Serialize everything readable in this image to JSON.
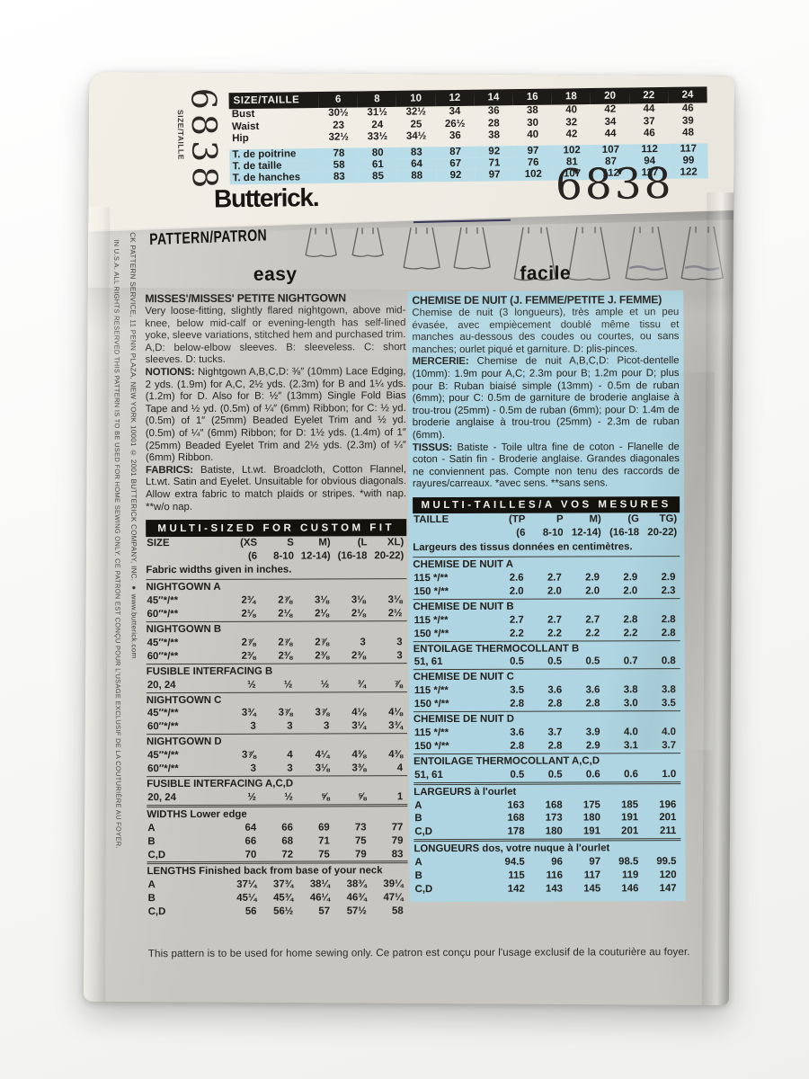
{
  "colors": {
    "chart_blue": "#b8dde8",
    "column_blue": "#aed5e1",
    "ink": "#1f1d19",
    "band_white": "#efece4",
    "envelope_gray": "#c7c6c1"
  },
  "envelope": {
    "brand": "Butterick.",
    "pattern_number": "6838",
    "size_vertical_label": "SIZE/TAILLE",
    "pattern_label": "PATTERN/PATRON",
    "footer": "This pattern is to be used for home sewing only. Ce patron est conçu pour l'usage exclusif de la couturière au foyer.",
    "side_text_inner": "CK PATTERN SERVICE, 11 PENN PLAZA, NEW YORK 10001 © 2001 BUTTERICK COMPANY, INC. ● www.butterick.com",
    "side_text_outer": "IN U.S.A. ALL RIGHTS RESERVED THIS PATTERN IS TO BE USED FOR HOME SEWING ONLY. CE PATRON EST CONÇU POUR L'USAGE EXCLUSIF DE LA COUTURIÈRE AU FOYER."
  },
  "size_chart": {
    "header": "SIZE/TAILLE",
    "sizes": [
      "6",
      "8",
      "10",
      "12",
      "14",
      "16",
      "18",
      "20",
      "22",
      "24"
    ],
    "rows_en": [
      {
        "label": "Bust",
        "values": [
          "30½",
          "31½",
          "32½",
          "34",
          "36",
          "38",
          "40",
          "42",
          "44",
          "46"
        ]
      },
      {
        "label": "Waist",
        "values": [
          "23",
          "24",
          "25",
          "26½",
          "28",
          "30",
          "32",
          "34",
          "37",
          "39"
        ]
      },
      {
        "label": "Hip",
        "values": [
          "32½",
          "33½",
          "34½",
          "36",
          "38",
          "40",
          "42",
          "44",
          "46",
          "48"
        ]
      }
    ],
    "rows_fr": [
      {
        "label": "T. de poitrine",
        "values": [
          "78",
          "80",
          "83",
          "87",
          "92",
          "97",
          "102",
          "107",
          "112",
          "117"
        ]
      },
      {
        "label": "T. de taille",
        "values": [
          "58",
          "61",
          "64",
          "67",
          "71",
          "76",
          "81",
          "87",
          "94",
          "99"
        ]
      },
      {
        "label": "T. de hanches",
        "values": [
          "83",
          "85",
          "88",
          "92",
          "97",
          "102",
          "107",
          "112",
          "117",
          "122"
        ]
      }
    ]
  },
  "english": {
    "difficulty": "easy",
    "title": "MISSES'/MISSES' PETITE NIGHTGOWN",
    "desc": "Very loose-fitting, slightly flared nightgown, above mid-knee, below mid-calf or evening-length has self-lined yoke, sleeve variations, stitched hem and purchased trim. A,D: below-elbow sleeves. B: sleeveless. C: short sleeves. D: tucks.",
    "notions_lead": "NOTIONS:",
    "notions": " Nightgown A,B,C,D: ⅜″ (10mm) Lace Edging, 2 yds. (1.9m) for A,C, 2½ yds. (2.3m) for B and 1¼ yds. (1.2m) for D. Also for B: ½″ (13mm) Single Fold Bias Tape and ½ yd. (0.5m) of ¼″ (6mm) Ribbon; for C: ½ yd. (0.5m) of 1″ (25mm) Beaded Eyelet Trim and ½ yd. (0.5m) of ¼″ (6mm) Ribbon; for D: 1½ yds. (1.4m) of 1″ (25mm) Beaded Eyelet Trim and 2½ yds. (2.3m) of ¼″ (6mm) Ribbon.",
    "fabrics_lead": "FABRICS:",
    "fabrics": " Batiste, Lt.wt. Broadcloth, Cotton Flannel, Lt.wt. Satin and Eyelet. Unsuitable for obvious diagonals. Allow extra fabric to match plaids or stripes. *with nap. **w/o nap.",
    "table": {
      "header": "MULTI-SIZED FOR CUSTOM FIT",
      "size_rows": [
        [
          "SIZE",
          "(XS",
          "S",
          "M)",
          "(L",
          "XL)"
        ],
        [
          "",
          "(6",
          "8-10",
          "12-14)",
          "(16-18",
          "20-22)"
        ]
      ],
      "note": "Fabric widths given in inches.",
      "sections": [
        {
          "title": "NIGHTGOWN A",
          "rows": [
            {
              "label": "45″*/**",
              "values": [
                "2¾",
                "2⅞",
                "3⅛",
                "3⅛",
                "3⅛"
              ]
            },
            {
              "label": "60″*/**",
              "values": [
                "2⅛",
                "2⅛",
                "2⅛",
                "2⅛",
                "2½"
              ]
            }
          ]
        },
        {
          "title": "NIGHTGOWN B",
          "rows": [
            {
              "label": "45″*/**",
              "values": [
                "2⅞",
                "2⅞",
                "2⅞",
                "3",
                "3"
              ]
            },
            {
              "label": "60″*/**",
              "values": [
                "2⅜",
                "2⅜",
                "2⅜",
                "2⅜",
                "3"
              ]
            }
          ]
        },
        {
          "title": "FUSIBLE INTERFACING B",
          "rows": [
            {
              "label": "20, 24",
              "values": [
                "½",
                "½",
                "½",
                "¾",
                "⅞"
              ]
            }
          ]
        },
        {
          "title": "NIGHTGOWN C",
          "rows": [
            {
              "label": "45″*/**",
              "values": [
                "3¾",
                "3⅞",
                "3⅞",
                "4⅛",
                "4⅛"
              ]
            },
            {
              "label": "60″*/**",
              "values": [
                "3",
                "3",
                "3",
                "3¼",
                "3¾"
              ]
            }
          ]
        },
        {
          "title": "NIGHTGOWN D",
          "rows": [
            {
              "label": "45″*/**",
              "values": [
                "3⅞",
                "4",
                "4¼",
                "4⅜",
                "4⅜"
              ]
            },
            {
              "label": "60″*/**",
              "values": [
                "3",
                "3",
                "3⅛",
                "3⅜",
                "4"
              ]
            }
          ]
        },
        {
          "title": "FUSIBLE INTERFACING A,C,D",
          "rows": [
            {
              "label": "20, 24",
              "values": [
                "½",
                "½",
                "⅝",
                "⅝",
                "1"
              ]
            }
          ]
        },
        {
          "title": "WIDTHS Lower edge",
          "strong_rule": true,
          "rows": [
            {
              "label": "A",
              "values": [
                "64",
                "66",
                "69",
                "73",
                "77"
              ]
            },
            {
              "label": "B",
              "values": [
                "66",
                "68",
                "71",
                "75",
                "79"
              ]
            },
            {
              "label": "C,D",
              "values": [
                "70",
                "72",
                "75",
                "79",
                "83"
              ]
            }
          ]
        },
        {
          "title": "LENGTHS Finished back from base of your neck",
          "strong_rule": true,
          "rows": [
            {
              "label": "A",
              "values": [
                "37¼",
                "37¾",
                "38¼",
                "38¾",
                "39¼"
              ]
            },
            {
              "label": "B",
              "values": [
                "45¼",
                "45¾",
                "46¼",
                "46¾",
                "47¼"
              ]
            },
            {
              "label": "C,D",
              "values": [
                "56",
                "56½",
                "57",
                "57½",
                "58"
              ]
            }
          ]
        }
      ]
    }
  },
  "french": {
    "difficulty": "facile",
    "title": "CHEMISE DE NUIT (J. FEMME/PETITE J. FEMME)",
    "desc": "Chemise de nuit (3 longueurs), très ample et un peu évasée, avec empiècement doublé même tissu et manches au-dessous des coudes ou courtes, ou sans manches; ourlet piqué et garniture. D: plis-pinces.",
    "mercerie_lead": "MERCERIE:",
    "mercerie": " Chemise de nuit A,B,C,D: Picot-dentelle (10mm): 1.9m pour A,C; 2.3m pour B; 1.2m pour D; plus pour B: Ruban biaisé simple (13mm) - 0.5m de ruban (6mm); pour C: 0.5m de garniture de broderie anglaise à trou-trou (25mm) - 0.5m de ruban (6mm); pour D: 1.4m de broderie anglaise à trou-trou (25mm) - 2.3m de ruban (6mm).",
    "tissus_lead": "TISSUS:",
    "tissus": " Batiste - Toile ultra fine de coton - Flanelle de coton - Satin fin - Broderie anglaise. Grandes diagonales ne conviennent pas. Compte non tenu des raccords de rayures/carreaux. *avec sens. **sans sens.",
    "table": {
      "header": "MULTI-TAILLES/A VOS MESURES",
      "size_rows": [
        [
          "TAILLE",
          "(TP",
          "P",
          "M)",
          "(G",
          "TG)"
        ],
        [
          "",
          "(6",
          "8-10",
          "12-14)",
          "(16-18",
          "20-22)"
        ]
      ],
      "note": "Largeurs des tissus données en centimètres.",
      "sections": [
        {
          "title": "CHEMISE DE NUIT A",
          "rows": [
            {
              "label": "115 */**",
              "values": [
                "2.6",
                "2.7",
                "2.9",
                "2.9",
                "2.9"
              ]
            },
            {
              "label": "150 */**",
              "values": [
                "2.0",
                "2.0",
                "2.0",
                "2.0",
                "2.3"
              ]
            }
          ]
        },
        {
          "title": "CHEMISE DE NUIT B",
          "rows": [
            {
              "label": "115 */**",
              "values": [
                "2.7",
                "2.7",
                "2.7",
                "2.8",
                "2.8"
              ]
            },
            {
              "label": "150 */**",
              "values": [
                "2.2",
                "2.2",
                "2.2",
                "2.2",
                "2.8"
              ]
            }
          ]
        },
        {
          "title": "ENTOILAGE THERMOCOLLANT B",
          "rows": [
            {
              "label": "51, 61",
              "values": [
                "0.5",
                "0.5",
                "0.5",
                "0.7",
                "0.8"
              ]
            }
          ]
        },
        {
          "title": "CHEMISE DE NUIT C",
          "rows": [
            {
              "label": "115 */**",
              "values": [
                "3.5",
                "3.6",
                "3.6",
                "3.8",
                "3.8"
              ]
            },
            {
              "label": "150 */**",
              "values": [
                "2.8",
                "2.8",
                "2.8",
                "3.0",
                "3.5"
              ]
            }
          ]
        },
        {
          "title": "CHEMISE DE NUIT D",
          "rows": [
            {
              "label": "115 */**",
              "values": [
                "3.6",
                "3.7",
                "3.9",
                "4.0",
                "4.0"
              ]
            },
            {
              "label": "150 */**",
              "values": [
                "2.8",
                "2.8",
                "2.9",
                "3.1",
                "3.7"
              ]
            }
          ]
        },
        {
          "title": "ENTOILAGE THERMOCOLLANT A,C,D",
          "rows": [
            {
              "label": "51, 61",
              "values": [
                "0.5",
                "0.5",
                "0.6",
                "0.6",
                "1.0"
              ]
            }
          ]
        },
        {
          "title": "LARGEURS à l'ourlet",
          "strong_rule": true,
          "rows": [
            {
              "label": "A",
              "values": [
                "163",
                "168",
                "175",
                "185",
                "196"
              ]
            },
            {
              "label": "B",
              "values": [
                "168",
                "173",
                "180",
                "191",
                "201"
              ]
            },
            {
              "label": "C,D",
              "values": [
                "178",
                "180",
                "191",
                "201",
                "211"
              ]
            }
          ]
        },
        {
          "title": "LONGUEURS dos, votre nuque à l'ourlet",
          "strong_rule": true,
          "rows": [
            {
              "label": "A",
              "values": [
                "94.5",
                "96",
                "97",
                "98.5",
                "99.5"
              ]
            },
            {
              "label": "B",
              "values": [
                "115",
                "116",
                "117",
                "119",
                "120"
              ]
            },
            {
              "label": "C,D",
              "values": [
                "142",
                "143",
                "145",
                "146",
                "147"
              ]
            }
          ]
        }
      ]
    }
  }
}
